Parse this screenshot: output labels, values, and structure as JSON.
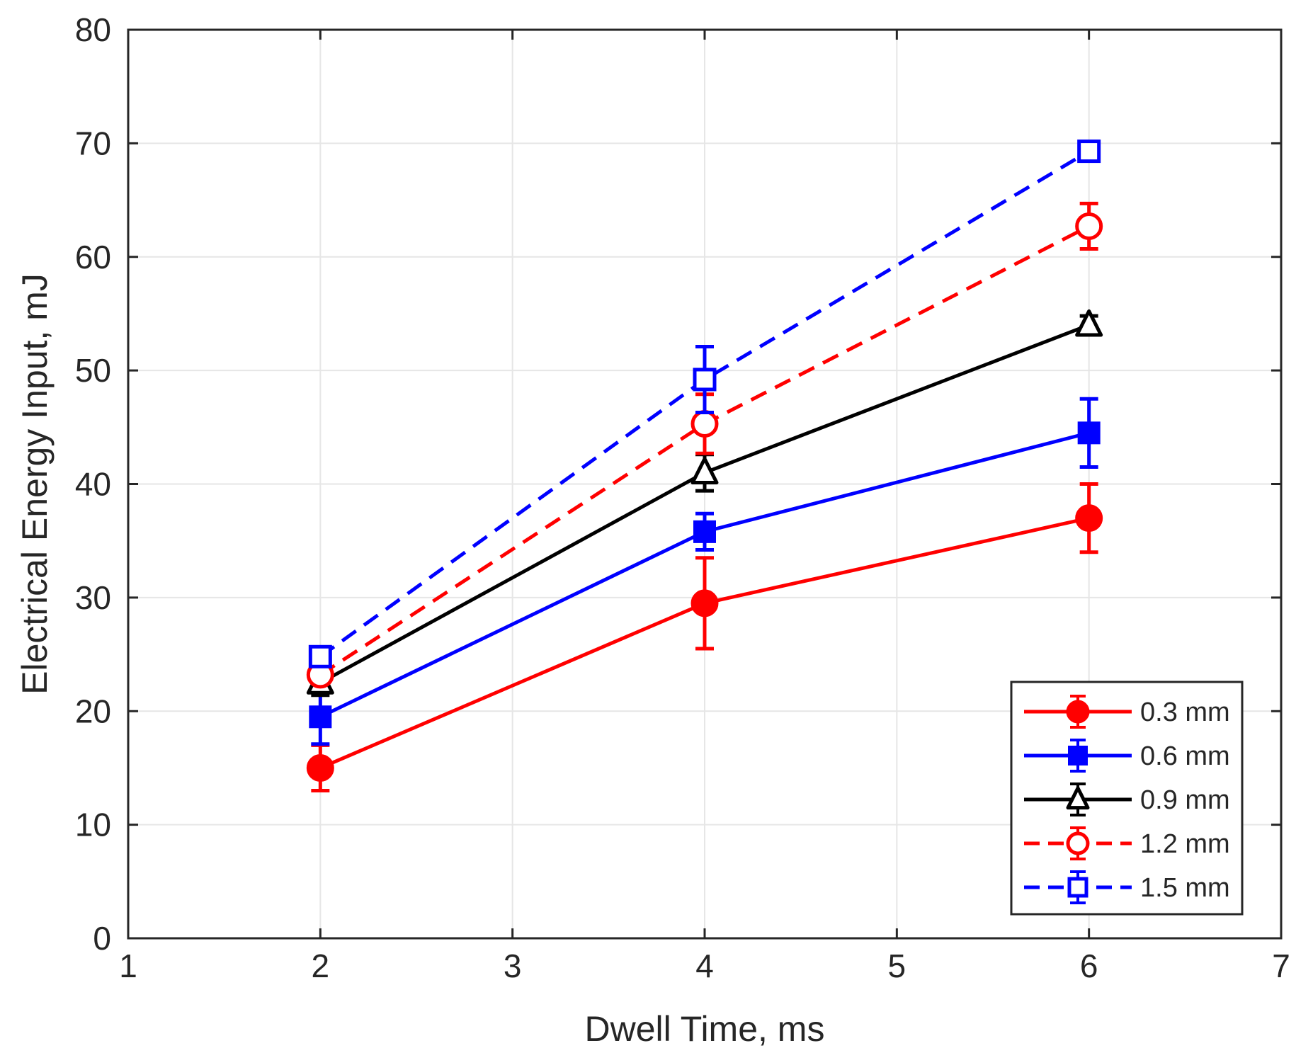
{
  "chart_data": {
    "type": "line",
    "title": "",
    "xlabel": "Dwell Time, ms",
    "ylabel": "Electrical Energy Input, mJ",
    "xlim": [
      1,
      7
    ],
    "ylim": [
      0,
      80
    ],
    "xticks": [
      1,
      2,
      3,
      4,
      5,
      6,
      7
    ],
    "yticks": [
      0,
      10,
      20,
      30,
      40,
      50,
      60,
      70,
      80
    ],
    "grid": true,
    "legend_position": "bottom-right",
    "x": [
      2,
      4,
      6
    ],
    "series": [
      {
        "name": "0.3 mm",
        "color": "#ff0000",
        "line_style": "solid",
        "marker": "circle-filled",
        "values": [
          15,
          29.5,
          37
        ],
        "errors": [
          2,
          4,
          3
        ]
      },
      {
        "name": "0.6 mm",
        "color": "#0000ff",
        "line_style": "solid",
        "marker": "square-filled",
        "values": [
          19.5,
          35.8,
          44.5
        ],
        "errors": [
          2.4,
          1.6,
          3
        ]
      },
      {
        "name": "0.9 mm",
        "color": "#000000",
        "line_style": "solid",
        "marker": "triangle-open",
        "values": [
          22.5,
          41,
          54
        ],
        "errors": [
          1.1,
          1.6,
          0.8
        ]
      },
      {
        "name": "1.2 mm",
        "color": "#ff0000",
        "line_style": "dashed",
        "marker": "circle-open",
        "values": [
          23.2,
          45.3,
          62.7
        ],
        "errors": [
          0.7,
          2.6,
          2
        ]
      },
      {
        "name": "1.5 mm",
        "color": "#0000ff",
        "line_style": "dashed",
        "marker": "square-open",
        "values": [
          24.8,
          49.2,
          69.3
        ],
        "errors": [
          0.8,
          2.9,
          0.5
        ]
      }
    ]
  }
}
